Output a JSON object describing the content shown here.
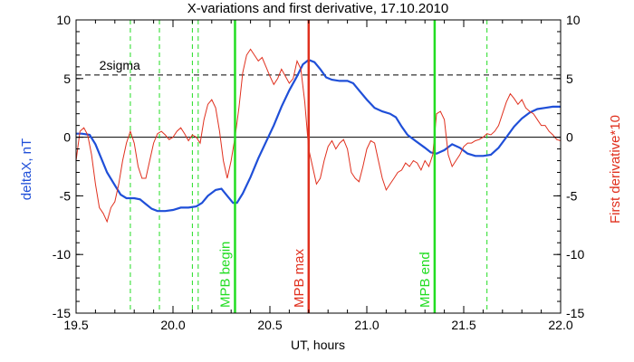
{
  "chart_data": {
    "type": "line",
    "title": "X-variations and first derivative, 17.10.2010",
    "xlabel": "UT, hours",
    "ylabel_left": "deltaX, nT",
    "ylabel_right": "First derivative*10",
    "xlim": [
      19.5,
      22.0
    ],
    "ylim": [
      -15,
      10
    ],
    "x_ticks": [
      "19.5",
      "20.0",
      "20.5",
      "21.0",
      "21.5",
      "22.0"
    ],
    "y_ticks": [
      "10",
      "5",
      "0",
      "-5",
      "-10",
      "-15"
    ],
    "colors": {
      "deltaX": "#1f4fd8",
      "derivative": "#e0301e",
      "green": "#22dd22",
      "red": "#e0301e",
      "black": "#000000"
    },
    "sigma": {
      "label": "2sigma",
      "value": 5.3
    },
    "vlines_dashed": [
      19.78,
      19.93,
      20.1,
      20.13,
      21.62
    ],
    "vlines_solid": [
      {
        "x": 20.32,
        "label": "MPB begin",
        "color": "#22dd22"
      },
      {
        "x": 20.7,
        "label": "MPB max",
        "color": "#e0301e"
      },
      {
        "x": 21.35,
        "label": "MPB end",
        "color": "#22dd22"
      }
    ],
    "series": [
      {
        "key": "deltaX",
        "points": [
          [
            19.5,
            0.3
          ],
          [
            19.53,
            0.3
          ],
          [
            19.57,
            0.2
          ],
          [
            19.6,
            -0.6
          ],
          [
            19.63,
            -1.8
          ],
          [
            19.66,
            -3.0
          ],
          [
            19.7,
            -4.1
          ],
          [
            19.73,
            -4.9
          ],
          [
            19.76,
            -5.2
          ],
          [
            19.8,
            -5.2
          ],
          [
            19.83,
            -5.3
          ],
          [
            19.86,
            -5.7
          ],
          [
            19.89,
            -6.1
          ],
          [
            19.92,
            -6.3
          ],
          [
            19.96,
            -6.3
          ],
          [
            20.0,
            -6.2
          ],
          [
            20.04,
            -6.0
          ],
          [
            20.08,
            -6.0
          ],
          [
            20.12,
            -5.9
          ],
          [
            20.15,
            -5.6
          ],
          [
            20.18,
            -5.0
          ],
          [
            20.22,
            -4.5
          ],
          [
            20.25,
            -4.4
          ],
          [
            20.28,
            -5.0
          ],
          [
            20.31,
            -5.6
          ],
          [
            20.33,
            -5.6
          ],
          [
            20.36,
            -4.8
          ],
          [
            20.4,
            -3.4
          ],
          [
            20.44,
            -1.8
          ],
          [
            20.48,
            -0.4
          ],
          [
            20.52,
            1.0
          ],
          [
            20.56,
            2.6
          ],
          [
            20.6,
            4.0
          ],
          [
            20.64,
            5.2
          ],
          [
            20.67,
            6.2
          ],
          [
            20.7,
            6.6
          ],
          [
            20.73,
            6.4
          ],
          [
            20.76,
            5.8
          ],
          [
            20.79,
            5.1
          ],
          [
            20.82,
            4.9
          ],
          [
            20.86,
            4.8
          ],
          [
            20.9,
            4.8
          ],
          [
            20.93,
            4.6
          ],
          [
            20.96,
            4.0
          ],
          [
            21.0,
            3.2
          ],
          [
            21.04,
            2.5
          ],
          [
            21.08,
            2.2
          ],
          [
            21.12,
            2.0
          ],
          [
            21.15,
            1.7
          ],
          [
            21.18,
            0.9
          ],
          [
            21.21,
            0.2
          ],
          [
            21.25,
            -0.3
          ],
          [
            21.3,
            -0.9
          ],
          [
            21.33,
            -1.3
          ],
          [
            21.36,
            -1.4
          ],
          [
            21.4,
            -1.1
          ],
          [
            21.44,
            -0.6
          ],
          [
            21.48,
            -0.9
          ],
          [
            21.52,
            -1.4
          ],
          [
            21.56,
            -1.6
          ],
          [
            21.6,
            -1.6
          ],
          [
            21.64,
            -1.5
          ],
          [
            21.68,
            -0.9
          ],
          [
            21.72,
            0.0
          ],
          [
            21.76,
            0.9
          ],
          [
            21.8,
            1.6
          ],
          [
            21.84,
            2.1
          ],
          [
            21.88,
            2.4
          ],
          [
            21.92,
            2.5
          ],
          [
            21.96,
            2.6
          ],
          [
            22.0,
            2.6
          ]
        ]
      },
      {
        "key": "derivative",
        "points": [
          [
            19.5,
            -2.0
          ],
          [
            19.52,
            0.5
          ],
          [
            19.54,
            0.8
          ],
          [
            19.56,
            0.2
          ],
          [
            19.58,
            -1.5
          ],
          [
            19.6,
            -4.0
          ],
          [
            19.62,
            -6.0
          ],
          [
            19.64,
            -6.5
          ],
          [
            19.66,
            -7.2
          ],
          [
            19.68,
            -6.0
          ],
          [
            19.7,
            -5.5
          ],
          [
            19.72,
            -4.0
          ],
          [
            19.74,
            -2.0
          ],
          [
            19.76,
            -0.5
          ],
          [
            19.78,
            0.5
          ],
          [
            19.8,
            -0.5
          ],
          [
            19.82,
            -2.5
          ],
          [
            19.84,
            -3.5
          ],
          [
            19.86,
            -3.5
          ],
          [
            19.88,
            -2.0
          ],
          [
            19.9,
            -0.5
          ],
          [
            19.92,
            0.3
          ],
          [
            19.94,
            0.5
          ],
          [
            19.96,
            0.2
          ],
          [
            19.98,
            -0.2
          ],
          [
            20.0,
            0.0
          ],
          [
            20.02,
            0.5
          ],
          [
            20.04,
            0.8
          ],
          [
            20.06,
            0.3
          ],
          [
            20.08,
            -0.3
          ],
          [
            20.1,
            0.2
          ],
          [
            20.12,
            0.0
          ],
          [
            20.14,
            -0.5
          ],
          [
            20.16,
            1.5
          ],
          [
            20.18,
            2.8
          ],
          [
            20.2,
            3.2
          ],
          [
            20.22,
            2.5
          ],
          [
            20.24,
            0.5
          ],
          [
            20.26,
            -2.0
          ],
          [
            20.28,
            -3.5
          ],
          [
            20.3,
            -2.0
          ],
          [
            20.32,
            0.0
          ],
          [
            20.34,
            2.5
          ],
          [
            20.36,
            5.5
          ],
          [
            20.38,
            7.0
          ],
          [
            20.4,
            7.5
          ],
          [
            20.42,
            7.0
          ],
          [
            20.44,
            6.5
          ],
          [
            20.46,
            6.8
          ],
          [
            20.48,
            6.0
          ],
          [
            20.5,
            5.2
          ],
          [
            20.52,
            4.5
          ],
          [
            20.54,
            5.0
          ],
          [
            20.56,
            5.8
          ],
          [
            20.58,
            5.2
          ],
          [
            20.6,
            4.6
          ],
          [
            20.62,
            5.0
          ],
          [
            20.64,
            6.5
          ],
          [
            20.66,
            5.8
          ],
          [
            20.68,
            3.0
          ],
          [
            20.7,
            -1.0
          ],
          [
            20.72,
            -2.5
          ],
          [
            20.74,
            -4.0
          ],
          [
            20.76,
            -3.5
          ],
          [
            20.78,
            -2.0
          ],
          [
            20.8,
            -0.8
          ],
          [
            20.82,
            -0.3
          ],
          [
            20.84,
            -1.0
          ],
          [
            20.86,
            -0.5
          ],
          [
            20.88,
            -0.2
          ],
          [
            20.9,
            -1.0
          ],
          [
            20.92,
            -3.0
          ],
          [
            20.94,
            -3.5
          ],
          [
            20.96,
            -3.8
          ],
          [
            20.98,
            -2.5
          ],
          [
            21.0,
            -1.0
          ],
          [
            21.02,
            -0.3
          ],
          [
            21.04,
            -0.5
          ],
          [
            21.06,
            -2.0
          ],
          [
            21.08,
            -3.5
          ],
          [
            21.1,
            -4.5
          ],
          [
            21.12,
            -4.0
          ],
          [
            21.14,
            -3.5
          ],
          [
            21.16,
            -3.0
          ],
          [
            21.18,
            -2.8
          ],
          [
            21.2,
            -2.2
          ],
          [
            21.22,
            -2.5
          ],
          [
            21.24,
            -2.0
          ],
          [
            21.26,
            -2.2
          ],
          [
            21.28,
            -2.8
          ],
          [
            21.3,
            -2.0
          ],
          [
            21.32,
            -2.5
          ],
          [
            21.34,
            -1.5
          ],
          [
            21.36,
            2.0
          ],
          [
            21.38,
            2.2
          ],
          [
            21.4,
            1.5
          ],
          [
            21.42,
            -1.5
          ],
          [
            21.44,
            -2.5
          ],
          [
            21.46,
            -2.0
          ],
          [
            21.48,
            -1.5
          ],
          [
            21.5,
            -0.8
          ],
          [
            21.52,
            -0.5
          ],
          [
            21.54,
            -0.5
          ],
          [
            21.56,
            -0.3
          ],
          [
            21.58,
            -0.2
          ],
          [
            21.6,
            0.0
          ],
          [
            21.62,
            0.3
          ],
          [
            21.64,
            0.2
          ],
          [
            21.66,
            0.5
          ],
          [
            21.68,
            1.0
          ],
          [
            21.7,
            2.0
          ],
          [
            21.72,
            3.0
          ],
          [
            21.74,
            3.7
          ],
          [
            21.76,
            3.3
          ],
          [
            21.78,
            2.8
          ],
          [
            21.8,
            3.2
          ],
          [
            21.82,
            2.5
          ],
          [
            21.84,
            2.2
          ],
          [
            21.86,
            2.0
          ],
          [
            21.88,
            1.5
          ],
          [
            21.9,
            1.0
          ],
          [
            21.92,
            1.0
          ],
          [
            21.94,
            0.5
          ],
          [
            21.96,
            0.2
          ],
          [
            21.98,
            -0.2
          ],
          [
            22.0,
            -0.3
          ]
        ]
      }
    ]
  }
}
